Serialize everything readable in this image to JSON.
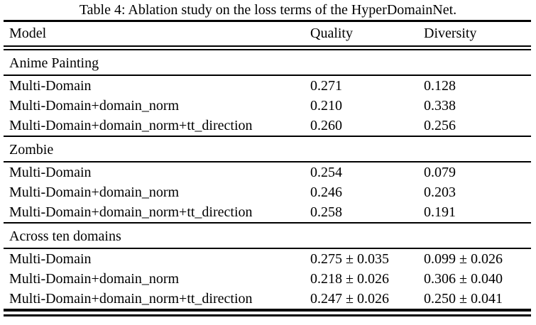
{
  "caption": "Table 4: Ablation study on the loss terms of the HyperDomainNet.",
  "colors": {
    "text": "#000000",
    "background": "#ffffff",
    "rule": "#000000"
  },
  "table": {
    "columns": [
      "Model",
      "Quality",
      "Diversity"
    ],
    "sections": [
      {
        "name": "Anime Painting",
        "rows": [
          {
            "model": "Multi-Domain",
            "quality": "0.271",
            "diversity": "0.128"
          },
          {
            "model": "Multi-Domain+domain_norm",
            "quality": "0.210",
            "diversity": "0.338"
          },
          {
            "model": "Multi-Domain+domain_norm+tt_direction",
            "quality": "0.260",
            "diversity": "0.256"
          }
        ]
      },
      {
        "name": "Zombie",
        "rows": [
          {
            "model": "Multi-Domain",
            "quality": "0.254",
            "diversity": "0.079"
          },
          {
            "model": "Multi-Domain+domain_norm",
            "quality": "0.246",
            "diversity": "0.203"
          },
          {
            "model": "Multi-Domain+domain_norm+tt_direction",
            "quality": "0.258",
            "diversity": "0.191"
          }
        ]
      },
      {
        "name": "Across ten domains",
        "rows": [
          {
            "model": "Multi-Domain",
            "quality": "0.275 ± 0.035",
            "diversity": "0.099 ± 0.026"
          },
          {
            "model": "Multi-Domain+domain_norm",
            "quality": "0.218 ± 0.026",
            "diversity": "0.306 ± 0.040"
          },
          {
            "model": "Multi-Domain+domain_norm+tt_direction",
            "quality": "0.247 ± 0.026",
            "diversity": "0.250 ± 0.041"
          }
        ]
      }
    ]
  }
}
